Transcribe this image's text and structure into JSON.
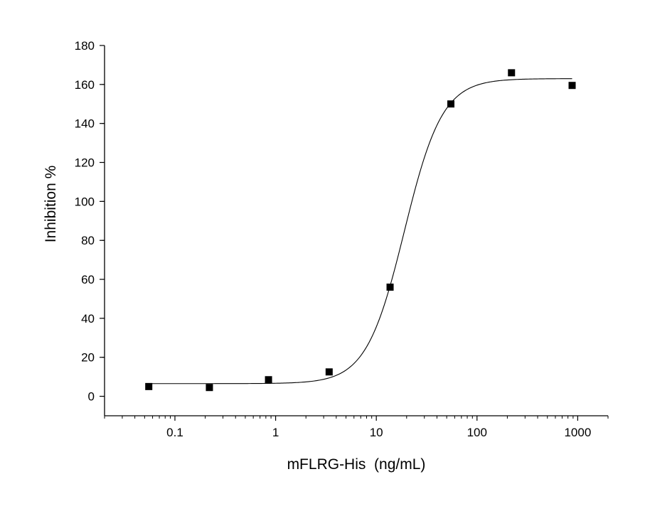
{
  "chart_data": {
    "type": "scatter",
    "title": "",
    "xlabel": "mFLRG-His  (ng/mL)",
    "ylabel": "Inhibition %",
    "x_scale": "log",
    "xlim": [
      0.02,
      2000
    ],
    "ylim": [
      -10,
      180
    ],
    "x_ticks": [
      0.1,
      1,
      10,
      100,
      1000
    ],
    "x_tick_labels": [
      "0.1",
      "1",
      "10",
      "100",
      "1000"
    ],
    "y_ticks": [
      0,
      20,
      40,
      60,
      80,
      100,
      120,
      140,
      160,
      180
    ],
    "y_tick_labels": [
      "0",
      "20",
      "40",
      "60",
      "80",
      "100",
      "120",
      "140",
      "160",
      "180"
    ],
    "grid": false,
    "legend": "none",
    "marker_color": "#000000",
    "points": [
      {
        "x": 0.055,
        "y": 5
      },
      {
        "x": 0.22,
        "y": 4.5
      },
      {
        "x": 0.85,
        "y": 8.5
      },
      {
        "x": 3.4,
        "y": 12.5
      },
      {
        "x": 13.7,
        "y": 56
      },
      {
        "x": 55,
        "y": 150
      },
      {
        "x": 220,
        "y": 166
      },
      {
        "x": 880,
        "y": 159.5
      }
    ],
    "fit_curve": {
      "model": "4PL",
      "bottom": 6.5,
      "top": 163,
      "ec50": 19,
      "hill": 2.3,
      "x_range": [
        0.055,
        880
      ]
    }
  }
}
